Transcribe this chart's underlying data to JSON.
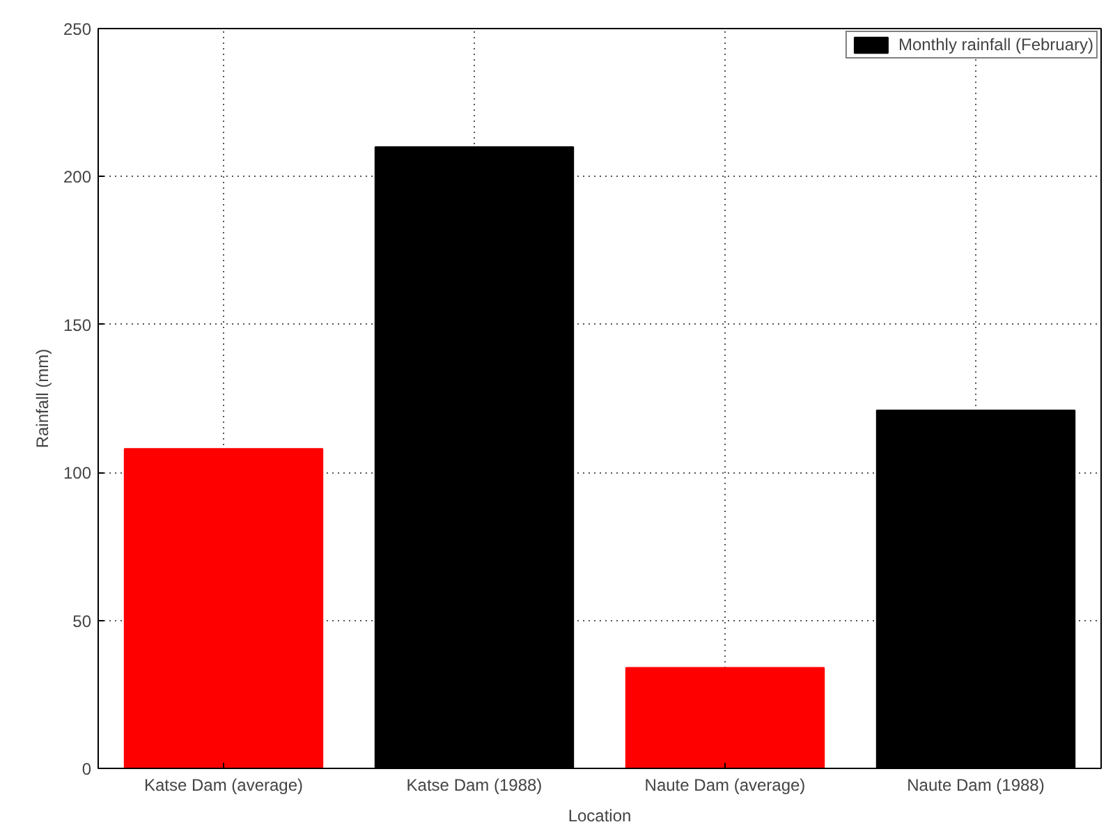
{
  "chart_data": {
    "type": "bar",
    "xlabel": "Location",
    "ylabel": "Rainfall (mm)",
    "categories": [
      "Katse Dam (average)",
      "Katse Dam (1988)",
      "Naute Dam (average)",
      "Naute Dam (1988)"
    ],
    "series": [
      {
        "name": "Monthly rainfall (February)",
        "color": "#000000",
        "colors": [
          "#ff0000",
          "#000000",
          "#ff0000",
          "#000000"
        ],
        "values": [
          108,
          210,
          34,
          121
        ]
      }
    ],
    "ylim": [
      0,
      250
    ],
    "yticks": [
      0,
      50,
      100,
      150,
      200,
      250
    ],
    "grid": true,
    "legend": "top right"
  }
}
